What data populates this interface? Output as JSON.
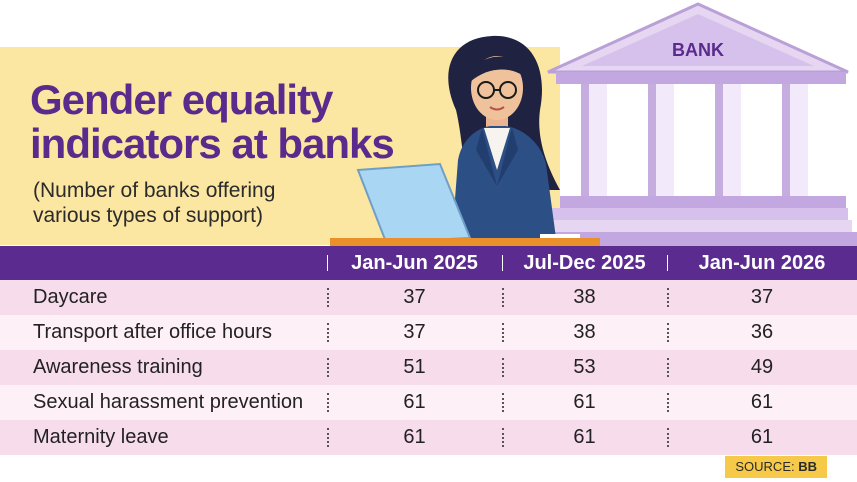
{
  "title_line1": "Gender equality",
  "title_line2": "indicators at banks",
  "subtitle_line1": "(Number of banks offering",
  "subtitle_line2": "various types of support)",
  "bank_label": "BANK",
  "table": {
    "columns": [
      "",
      "Jan-Jun 2025",
      "Jul-Dec 2025",
      "Jan-Jun 2026"
    ],
    "rows": [
      {
        "label": "Daycare",
        "values": [
          "37",
          "38",
          "37"
        ]
      },
      {
        "label": "Transport after office hours",
        "values": [
          "37",
          "38",
          "36"
        ]
      },
      {
        "label": "Awareness training",
        "values": [
          "51",
          "53",
          "49"
        ]
      },
      {
        "label": "Sexual harassment prevention",
        "values": [
          "61",
          "61",
          "61"
        ]
      },
      {
        "label": "Maternity leave",
        "values": [
          "61",
          "61",
          "61"
        ]
      }
    ]
  },
  "source_prefix": "SOURCE: ",
  "source_name": "BB",
  "colors": {
    "accent_purple": "#5b2b8f",
    "banner_yellow": "#fbe6a2",
    "row_pink": "#f7dcec",
    "row_light": "#fdf0f6",
    "source_yellow": "#f7c948"
  }
}
